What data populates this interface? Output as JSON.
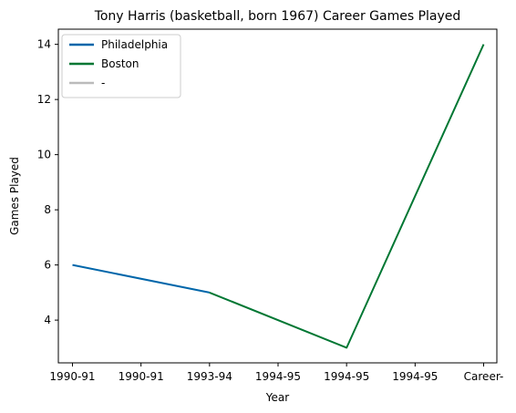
{
  "chart_data": {
    "type": "line",
    "title": "Tony Harris (basketball, born 1967) Career Games Played",
    "xlabel": "Year",
    "ylabel": "Games Played",
    "categories": [
      "1990-91",
      "1990-91",
      "1993-94",
      "1994-95",
      "1994-95",
      "1994-95",
      "Career-"
    ],
    "ylim": [
      2.45,
      14.55
    ],
    "yticks": [
      4,
      6,
      8,
      10,
      12,
      14
    ],
    "grid": false,
    "legend_position": "top-left",
    "series": [
      {
        "name": "Philadelphia",
        "color": "#0066aa",
        "points": [
          [
            0,
            6
          ],
          [
            2,
            5
          ]
        ]
      },
      {
        "name": "Boston",
        "color": "#007733",
        "points": [
          [
            2,
            5
          ],
          [
            4,
            3
          ],
          [
            6,
            14
          ]
        ]
      },
      {
        "name": "-",
        "color": "#bbbbbb",
        "points": []
      }
    ]
  }
}
